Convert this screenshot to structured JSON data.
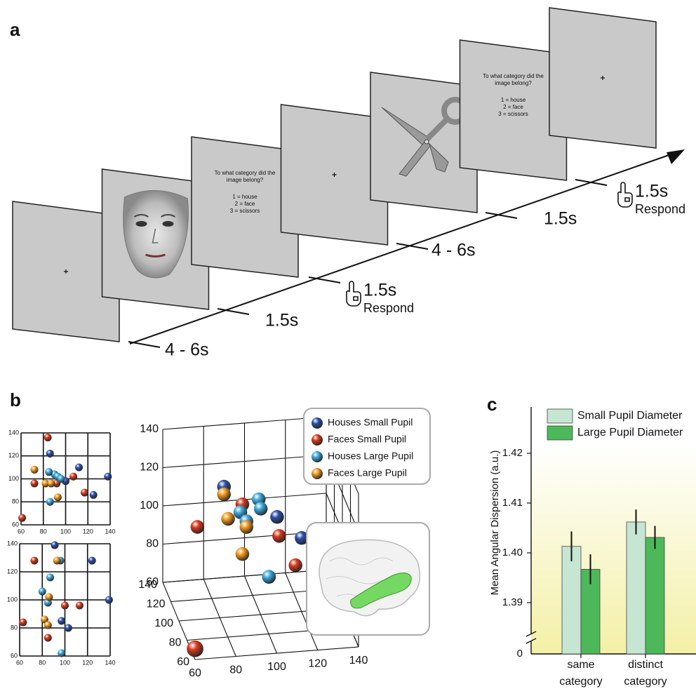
{
  "panels": [
    "a",
    "b",
    "c"
  ],
  "timeline": {
    "question_screens": [
      {
        "question": [
          "To what category did the",
          "image belong?"
        ],
        "options": [
          "1 = house",
          "2 = face",
          "3 = scissors"
        ]
      },
      {
        "question": [
          "To what category did the",
          "image belong?"
        ],
        "options": [
          "1 = house",
          "2 = face",
          "3 = scissors"
        ]
      }
    ],
    "intervals": [
      {
        "duration": "4 - 6s"
      },
      {
        "duration": "1.5s"
      },
      {
        "duration": "1.5s",
        "action": "Respond"
      },
      {
        "duration": "4 - 6s"
      },
      {
        "duration": "1.5s"
      },
      {
        "duration": "1.5s",
        "action": "Respond"
      }
    ]
  },
  "chart_data": [
    {
      "type": "scatter",
      "xlim": [
        60,
        140
      ],
      "ylim": [
        60,
        140
      ],
      "xticks": [
        60,
        80,
        100,
        120,
        140
      ],
      "yticks": [
        60,
        80,
        100,
        120,
        140
      ],
      "grid": true,
      "series": [
        {
          "color": "#2b4fa8",
          "x": [
            86,
            112,
            125,
            138,
            100
          ],
          "y": [
            122,
            110,
            86,
            102,
            98
          ]
        },
        {
          "color": "#d83a1c",
          "x": [
            84,
            61,
            72,
            92,
            107,
            117
          ],
          "y": [
            136,
            66,
            96,
            96,
            102,
            88
          ]
        },
        {
          "color": "#3fa9e0",
          "x": [
            90,
            93,
            96,
            85,
            86
          ],
          "y": [
            104,
            102,
            100,
            106,
            80
          ]
        },
        {
          "color": "#f39a1e",
          "x": [
            72,
            82,
            87,
            93
          ],
          "y": [
            108,
            96,
            96,
            84
          ]
        }
      ]
    },
    {
      "type": "scatter",
      "xlim": [
        60,
        140
      ],
      "ylim": [
        60,
        140
      ],
      "xticks": [
        60,
        80,
        100,
        120,
        140
      ],
      "yticks": [
        60,
        80,
        100,
        120,
        140
      ],
      "grid": true,
      "series": [
        {
          "color": "#2b4fa8",
          "x": [
            91,
            124,
            139,
            97,
            103
          ],
          "y": [
            139,
            128,
            100,
            85,
            80
          ]
        },
        {
          "color": "#d83a1c",
          "x": [
            73,
            63,
            113,
            100,
            85
          ],
          "y": [
            128,
            84,
            96,
            96,
            73
          ]
        },
        {
          "color": "#3fa9e0",
          "x": [
            96,
            87,
            80,
            85,
            97
          ],
          "y": [
            128,
            116,
            106,
            98,
            62
          ]
        },
        {
          "color": "#f39a1e",
          "x": [
            93,
            86,
            82,
            85
          ],
          "y": [
            128,
            102,
            86,
            82
          ]
        }
      ]
    },
    {
      "type": "scatter3d",
      "xlim": [
        60,
        140
      ],
      "ylim": [
        60,
        140
      ],
      "zlim": [
        60,
        140
      ],
      "xticks": [
        60,
        80,
        100,
        120,
        140
      ],
      "yticks": [
        60,
        80,
        100,
        120,
        140
      ],
      "zticks": [
        60,
        80,
        100,
        120,
        140
      ],
      "grid": true,
      "legend": "top-right",
      "series": [
        {
          "name": "Houses Small Pupil",
          "color": "#2b4fa8",
          "x": [
            86,
            112,
            124,
            140,
            108
          ],
          "y": [
            120,
            120,
            120,
            100,
            120
          ],
          "z": [
            118,
            100,
            88,
            101,
            69
          ]
        },
        {
          "name": "Faces Small Pupil",
          "color": "#d83a1c",
          "x": [
            95,
            73,
            113,
            121,
            61
          ],
          "y": [
            120,
            120,
            120,
            120,
            65
          ],
          "z": [
            108,
            98,
            90,
            74,
            63
          ]
        },
        {
          "name": "Houses Large Pupil",
          "color": "#3fa9e0",
          "x": [
            94,
            103,
            104,
            97,
            108
          ],
          "y": [
            120,
            120,
            120,
            120,
            120
          ],
          "z": [
            104,
            110,
            105,
            99,
            69
          ]
        },
        {
          "name": "Faces Large Pupil",
          "color": "#f39a1e",
          "x": [
            86,
            88,
            97,
            95
          ],
          "y": [
            120,
            120,
            120,
            120
          ],
          "z": [
            114,
            101,
            96,
            82
          ]
        }
      ]
    },
    {
      "type": "bar",
      "ylabel": "Mean Angular Dispersion (a.u.)",
      "categories": [
        "same category",
        "distinct category"
      ],
      "ylim": [
        1.3797,
        1.4293
      ],
      "yticks": [
        1.39,
        {
          "value": 1.4,
          "label": "1.40"
        },
        1.41,
        1.42
      ],
      "break_tick": 0,
      "legend": "top-left",
      "series": [
        {
          "name": "Small Pupil Diameter",
          "color": "#c6e6d3",
          "values": [
            1.4013,
            1.4062
          ],
          "errors": [
            0.003,
            0.0025
          ]
        },
        {
          "name": "Large Pupil Diameter",
          "color": "#4db85a",
          "values": [
            1.3967,
            1.4031
          ],
          "errors": [
            0.003,
            0.0023
          ]
        }
      ]
    }
  ]
}
